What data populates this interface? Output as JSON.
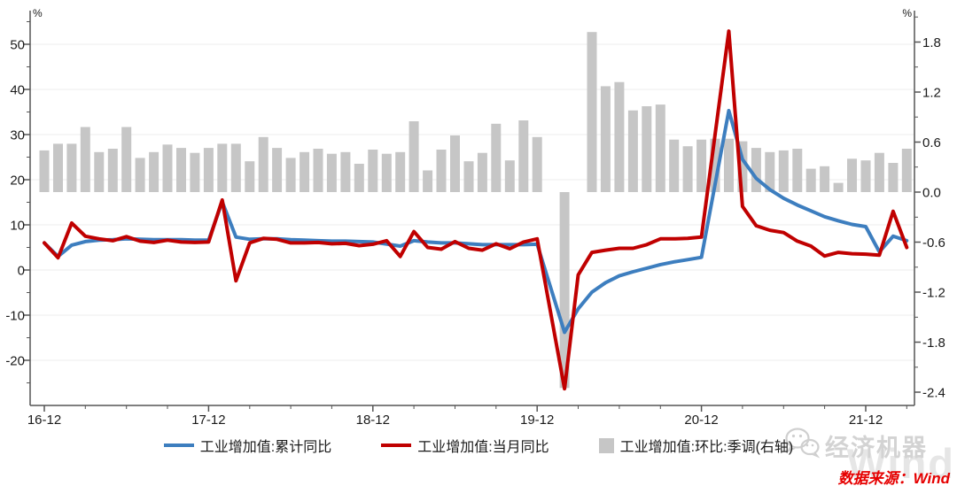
{
  "axes": {
    "left": {
      "unit": "%",
      "tick_labels": [
        "50",
        "40",
        "30",
        "20",
        "10",
        "0",
        "-10",
        "-20"
      ],
      "tick_values": [
        50,
        40,
        30,
        20,
        10,
        0,
        -10,
        -20
      ],
      "minor_step": 5,
      "range": [
        -30,
        57.4
      ]
    },
    "right": {
      "unit": "%",
      "tick_labels": [
        "1.8",
        "1.2",
        "0.6",
        "0.0",
        "-0.6",
        "-1.2",
        "-1.8",
        "-2.4"
      ],
      "tick_values": [
        1.8,
        1.2,
        0.6,
        0.0,
        -0.6,
        -1.2,
        -1.8,
        -2.4
      ],
      "minor_step": 0.3,
      "range": [
        -2.56,
        2.18
      ]
    },
    "x": {
      "year_labels": [
        "16-12",
        "17-12",
        "18-12",
        "19-12",
        "20-12",
        "21-12"
      ],
      "label_every": 12,
      "minor_every": 3
    }
  },
  "chart_data": {
    "type": "combo-line-bar",
    "title": "",
    "grid": true,
    "x_monthly": [
      "16-12",
      "17-01",
      "17-02",
      "17-03",
      "17-04",
      "17-05",
      "17-06",
      "17-07",
      "17-08",
      "17-09",
      "17-10",
      "17-11",
      "17-12",
      "18-01",
      "18-02",
      "18-03",
      "18-04",
      "18-05",
      "18-06",
      "18-07",
      "18-08",
      "18-09",
      "18-10",
      "18-11",
      "18-12",
      "19-01",
      "19-02",
      "19-03",
      "19-04",
      "19-05",
      "19-06",
      "19-07",
      "19-08",
      "19-09",
      "19-10",
      "19-11",
      "19-12",
      "20-01",
      "20-02",
      "20-03",
      "20-04",
      "20-05",
      "20-06",
      "20-07",
      "20-08",
      "20-09",
      "20-10",
      "20-11",
      "20-12",
      "21-01",
      "21-02",
      "21-03",
      "21-04",
      "21-05",
      "21-06",
      "21-07",
      "21-08",
      "21-09",
      "21-10",
      "21-11",
      "21-12",
      "22-01",
      "22-02",
      "22-03"
    ],
    "ylim_left": [
      -30,
      57.4
    ],
    "ylim_right": [
      -2.56,
      2.18
    ],
    "series": [
      {
        "name": "工业增加值:累计同比",
        "type": "line",
        "axis": "left",
        "color": "#3D7EBF",
        "values": [
          6.0,
          3.0,
          5.5,
          6.3,
          6.6,
          6.7,
          6.9,
          6.8,
          6.7,
          6.7,
          6.7,
          6.6,
          6.6,
          15.1,
          7.3,
          6.8,
          6.9,
          6.9,
          6.7,
          6.6,
          6.5,
          6.4,
          6.4,
          6.3,
          6.2,
          null,
          5.3,
          6.5,
          6.2,
          6.0,
          6.0,
          5.8,
          5.6,
          5.6,
          5.6,
          5.6,
          5.7,
          null,
          -13.8,
          -8.6,
          -4.9,
          -2.8,
          -1.3,
          -0.4,
          0.4,
          1.2,
          1.8,
          2.3,
          2.8,
          null,
          35.3,
          24.5,
          20.3,
          17.8,
          15.9,
          14.4,
          13.1,
          11.8,
          10.9,
          10.1,
          9.6,
          4.0,
          7.5,
          6.5
        ]
      },
      {
        "name": "工业增加值:当月同比",
        "type": "line",
        "axis": "left",
        "color": "#C00000",
        "values": [
          6.0,
          2.7,
          10.4,
          7.5,
          6.9,
          6.5,
          7.4,
          6.4,
          6.1,
          6.6,
          6.2,
          6.1,
          6.2,
          15.5,
          -2.4,
          6.0,
          7.0,
          6.8,
          6.0,
          6.0,
          6.1,
          5.8,
          5.9,
          5.4,
          5.7,
          6.5,
          3.0,
          8.5,
          5.0,
          4.6,
          6.3,
          4.8,
          4.4,
          5.8,
          4.7,
          6.2,
          6.9,
          null,
          -26.3,
          -1.1,
          3.9,
          4.4,
          4.8,
          4.8,
          5.6,
          6.9,
          6.9,
          7.0,
          7.3,
          null,
          52.9,
          14.1,
          9.8,
          8.8,
          8.3,
          6.4,
          5.3,
          3.1,
          3.9,
          3.6,
          3.5,
          3.3,
          13.0,
          5.0
        ]
      },
      {
        "name": "工业增加值:环比:季调(右轴)",
        "type": "bar",
        "axis": "right",
        "color": "#C6C6C6",
        "values": [
          0.5,
          0.58,
          0.58,
          0.78,
          0.48,
          0.52,
          0.78,
          0.41,
          0.48,
          0.57,
          0.53,
          0.47,
          0.53,
          0.58,
          0.58,
          0.37,
          0.66,
          0.53,
          0.41,
          0.48,
          0.52,
          0.46,
          0.48,
          0.34,
          0.51,
          0.46,
          0.48,
          0.85,
          0.26,
          0.51,
          0.68,
          0.37,
          0.47,
          0.82,
          0.38,
          0.86,
          0.66,
          null,
          -2.35,
          null,
          1.92,
          1.27,
          1.32,
          0.98,
          1.03,
          1.05,
          0.63,
          0.55,
          0.63,
          0.64,
          0.64,
          0.61,
          0.53,
          0.48,
          0.5,
          0.52,
          0.28,
          0.31,
          0.11,
          0.4,
          0.38,
          0.47,
          0.35,
          0.52
        ]
      }
    ],
    "legend_position": "bottom"
  },
  "legend": [
    {
      "label": "工业增加值:累计同比",
      "color": "#3D7EBF",
      "marker": "line"
    },
    {
      "label": "工业增加值:当月同比",
      "color": "#C00000",
      "marker": "line"
    },
    {
      "label": "工业增加值:环比:季调(右轴)",
      "color": "#C6C6C6",
      "marker": "square"
    }
  ],
  "watermark": {
    "brand": "经济机器",
    "wind": "Wind"
  },
  "source_note": "数据来源：Wind",
  "colors": {
    "grid": "#ececec",
    "axis": "#555555",
    "text": "#1a1a1a"
  }
}
